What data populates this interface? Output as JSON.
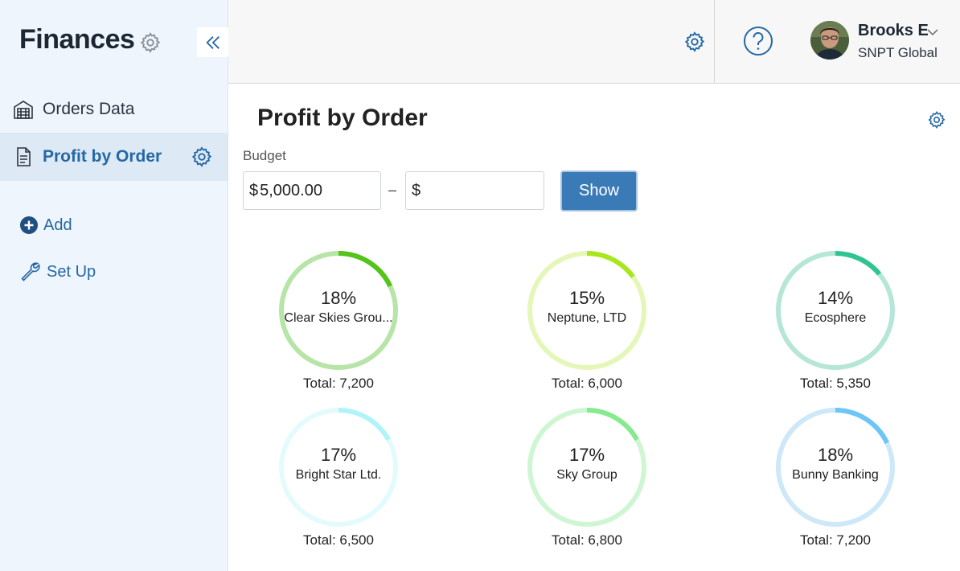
{
  "sidebar": {
    "app_title": "Finances",
    "items": [
      {
        "label": "Orders Data",
        "icon": "warehouse-icon",
        "active": false
      },
      {
        "label": "Profit by Order",
        "icon": "document-icon",
        "active": true
      }
    ],
    "actions": [
      {
        "label": "Add",
        "icon": "plus-circle-icon"
      },
      {
        "label": "Set Up",
        "icon": "wrench-icon"
      }
    ]
  },
  "header": {
    "user_name": "Brooks E",
    "user_org": "SNPT Global",
    "icons": [
      "gear-icon",
      "help-icon",
      "chevron-down-icon"
    ]
  },
  "main": {
    "title": "Profit by Order",
    "budget": {
      "label": "Budget",
      "min_currency": "$",
      "min_value": "5,000.00",
      "separator": "–",
      "max_currency": "$",
      "max_value": ""
    },
    "show_label": "Show",
    "cards": [
      {
        "percent": "18%",
        "fraction": 0.18,
        "name": "Clear Skies Grou...",
        "total": "Total: 7,200",
        "color": "#52c41a",
        "track": "#b7e4a7"
      },
      {
        "percent": "15%",
        "fraction": 0.15,
        "name": "Neptune, LTD",
        "total": "Total: 6,000",
        "color": "#a8e61d",
        "track": "#e5f7b8"
      },
      {
        "percent": "14%",
        "fraction": 0.14,
        "name": "Ecosphere",
        "total": "Total: 5,350",
        "color": "#2fc492",
        "track": "#b5e6d7"
      },
      {
        "percent": "17%",
        "fraction": 0.17,
        "name": "Bright Star Ltd.",
        "total": "Total: 6,500",
        "color": "#b0f4fa",
        "track": "#e3fbfd"
      },
      {
        "percent": "17%",
        "fraction": 0.17,
        "name": "Sky Group",
        "total": "Total: 6,800",
        "color": "#86ea8e",
        "track": "#cff6d3"
      },
      {
        "percent": "18%",
        "fraction": 0.18,
        "name": "Bunny Banking",
        "total": "Total: 7,200",
        "color": "#6ec6f5",
        "track": "#cde8f8"
      }
    ]
  }
}
